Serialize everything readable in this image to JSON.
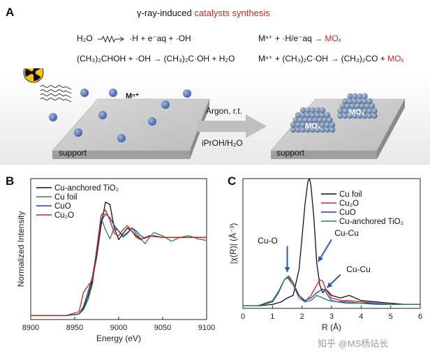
{
  "panels": {
    "a": "A",
    "b": "B",
    "c": "C"
  },
  "schematic": {
    "title_prefix": "γ-ray-induced ",
    "title_highlight": "catalysts synthesis",
    "eq1": {
      "lhs": "H₂O",
      "rhs": "·H + e⁻aq + ·OH"
    },
    "eq2": {
      "lhs": "(CH₃)₂CHOH + ·OH →",
      "rhs": "(CH₃)₂C·OH + H₂O"
    },
    "eq3": {
      "text": "Mⁿ⁺ + ·H/e⁻aq →",
      "product": "MOₓ"
    },
    "eq4": {
      "text": "Mⁿ⁺ + (CH₃)₂C·OH → (CH₃)₂CO +",
      "product": "MOₓ"
    },
    "ion_label": "Mⁿ⁺",
    "arrow_top": "Argon, r.t.",
    "arrow_bottom": "iPrOH/H₂O",
    "support_left": "support",
    "support_right": "support",
    "particle_label": "MOₓ"
  },
  "chart_data": [
    {
      "type": "line",
      "panel": "B",
      "xlabel": "Energy (eV)",
      "ylabel": "Normalized Intensity",
      "xlim": [
        8900,
        9100
      ],
      "xticks": [
        8900,
        8950,
        9000,
        9050,
        9100
      ],
      "series": [
        {
          "name": "Cu-anchored TiO₂",
          "color": "#111111",
          "x": [
            8900,
            8940,
            8955,
            8960,
            8965,
            8970,
            8975,
            8980,
            8985,
            8990,
            8995,
            9000,
            9005,
            9010,
            9015,
            9020,
            9025,
            9030,
            9035,
            9040,
            9050,
            9060,
            9070,
            9080,
            9090,
            9100
          ],
          "y": [
            0.0,
            0.0,
            0.02,
            0.1,
            0.25,
            0.45,
            0.75,
            1.15,
            1.45,
            1.42,
            1.12,
            0.97,
            1.05,
            1.12,
            1.08,
            1.02,
            0.98,
            0.99,
            1.02,
            1.01,
            1.0,
            1.0,
            1.0,
            1.0,
            1.0,
            1.0
          ]
        },
        {
          "name": "Cu foil",
          "color": "#2e7d5b",
          "x": [
            8900,
            8940,
            8955,
            8960,
            8965,
            8970,
            8975,
            8980,
            8985,
            8990,
            8995,
            9000,
            9005,
            9010,
            9015,
            9020,
            9025,
            9030,
            9035,
            9040,
            9050,
            9060,
            9070,
            9080,
            9090,
            9100
          ],
          "y": [
            0.0,
            0.0,
            0.02,
            0.12,
            0.3,
            0.5,
            0.8,
            1.25,
            1.1,
            0.98,
            1.12,
            1.08,
            1.0,
            1.05,
            1.12,
            1.05,
            0.98,
            0.92,
            1.0,
            1.06,
            1.02,
            0.95,
            1.0,
            1.02,
            0.98,
            0.96
          ]
        },
        {
          "name": "CuO",
          "color": "#1f3fa8",
          "x": [
            8900,
            8940,
            8955,
            8960,
            8965,
            8970,
            8975,
            8980,
            8985,
            8990,
            8995,
            9000,
            9005,
            9010,
            9015,
            9020,
            9025,
            9030,
            9035,
            9040,
            9050,
            9060,
            9070,
            9080,
            9090,
            9100
          ],
          "y": [
            0.0,
            0.0,
            0.02,
            0.08,
            0.2,
            0.4,
            0.8,
            1.2,
            1.3,
            1.25,
            1.15,
            1.08,
            1.02,
            1.06,
            1.12,
            1.08,
            1.02,
            0.99,
            1.01,
            1.02,
            1.0,
            1.0,
            1.0,
            1.0,
            1.0,
            1.0
          ]
        },
        {
          "name": "Cu₂O",
          "color": "#c62828",
          "x": [
            8900,
            8940,
            8955,
            8960,
            8965,
            8970,
            8975,
            8980,
            8985,
            8990,
            8995,
            9000,
            9005,
            9010,
            9015,
            9020,
            9025,
            9030,
            9035,
            9040,
            9050,
            9060,
            9070,
            9080,
            9090,
            9100
          ],
          "y": [
            0.0,
            0.0,
            0.05,
            0.3,
            0.38,
            0.45,
            0.85,
            1.28,
            1.35,
            1.22,
            1.05,
            1.02,
            1.1,
            1.15,
            1.08,
            1.0,
            0.97,
            1.0,
            1.02,
            1.01,
            1.0,
            1.0,
            1.0,
            1.0,
            1.0,
            1.0
          ]
        }
      ]
    },
    {
      "type": "line",
      "panel": "C",
      "xlabel": "R (Å)",
      "ylabel": "|χ(R)| (Å⁻³)",
      "xlim": [
        0,
        6
      ],
      "ylim": [
        0,
        1.0
      ],
      "xticks": [
        0,
        1,
        2,
        3,
        4,
        5,
        6
      ],
      "annotations": [
        "Cu-O",
        "Cu-Cu",
        "Cu-Cu"
      ],
      "series": [
        {
          "name": "Cu foil",
          "color": "#111111",
          "x": [
            0,
            0.5,
            1.0,
            1.3,
            1.5,
            1.7,
            1.9,
            2.0,
            2.1,
            2.2,
            2.25,
            2.3,
            2.4,
            2.5,
            2.6,
            2.7,
            2.8,
            3.0,
            3.3,
            3.6,
            4.0,
            4.5,
            5.0,
            5.5,
            6.0
          ],
          "y": [
            0.02,
            0.02,
            0.03,
            0.05,
            0.08,
            0.1,
            0.3,
            0.55,
            0.8,
            0.98,
            1.0,
            0.95,
            0.7,
            0.35,
            0.18,
            0.12,
            0.15,
            0.1,
            0.08,
            0.1,
            0.06,
            0.05,
            0.04,
            0.03,
            0.03
          ]
        },
        {
          "name": "Cu₂O",
          "color": "#c62828",
          "x": [
            0,
            0.5,
            1.0,
            1.2,
            1.4,
            1.55,
            1.7,
            1.9,
            2.1,
            2.3,
            2.5,
            2.6,
            2.7,
            2.8,
            3.0,
            3.3,
            3.6,
            4.0,
            4.5,
            5.0,
            5.5,
            6.0
          ],
          "y": [
            0.02,
            0.02,
            0.05,
            0.12,
            0.22,
            0.25,
            0.2,
            0.1,
            0.05,
            0.1,
            0.18,
            0.22,
            0.21,
            0.15,
            0.08,
            0.06,
            0.06,
            0.05,
            0.04,
            0.03,
            0.03,
            0.03
          ]
        },
        {
          "name": "CuO",
          "color": "#1f3fa8",
          "x": [
            0,
            0.5,
            1.0,
            1.2,
            1.4,
            1.5,
            1.7,
            1.9,
            2.1,
            2.3,
            2.5,
            2.7,
            2.8,
            2.9,
            3.0,
            3.2,
            3.5,
            4.0,
            4.5,
            5.0,
            5.5,
            6.0
          ],
          "y": [
            0.02,
            0.02,
            0.05,
            0.12,
            0.22,
            0.24,
            0.18,
            0.1,
            0.06,
            0.08,
            0.12,
            0.15,
            0.13,
            0.09,
            0.06,
            0.05,
            0.05,
            0.04,
            0.04,
            0.03,
            0.03,
            0.03
          ]
        },
        {
          "name": "Cu-anchored TiO₂",
          "color": "#2e7d5b",
          "x": [
            0,
            0.5,
            1.0,
            1.2,
            1.4,
            1.55,
            1.7,
            1.9,
            2.1,
            2.3,
            2.5,
            2.7,
            2.9,
            3.2,
            3.5,
            4.0,
            4.5,
            5.0,
            5.5,
            6.0
          ],
          "y": [
            0.02,
            0.02,
            0.06,
            0.13,
            0.22,
            0.24,
            0.18,
            0.08,
            0.05,
            0.06,
            0.1,
            0.08,
            0.06,
            0.05,
            0.04,
            0.04,
            0.03,
            0.03,
            0.03,
            0.03
          ]
        }
      ]
    }
  ],
  "watermark": "知乎 @MS杨站长"
}
